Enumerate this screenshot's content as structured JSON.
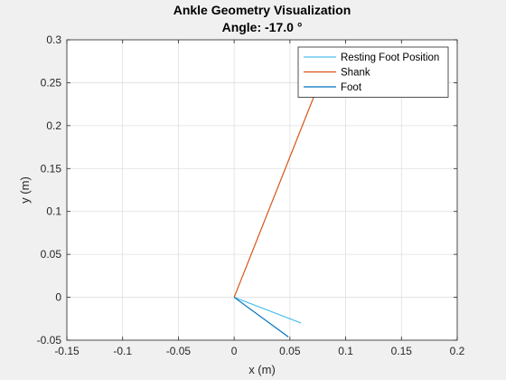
{
  "chart_data": {
    "type": "line",
    "title": "Ankle Geometry Visualization",
    "subtitle": "Angle: -17.0 °",
    "xlabel": "x (m)",
    "ylabel": "y (m)",
    "xlim": [
      -0.15,
      0.2
    ],
    "ylim": [
      -0.05,
      0.3
    ],
    "xticks": [
      -0.15,
      -0.1,
      -0.05,
      0,
      0.05,
      0.1,
      0.15,
      0.2
    ],
    "xtick_labels": [
      "-0.15",
      "-0.1",
      "-0.05",
      "0",
      "0.05",
      "0.1",
      "0.15",
      "0.2"
    ],
    "yticks": [
      -0.05,
      0,
      0.05,
      0.1,
      0.15,
      0.2,
      0.25,
      0.3
    ],
    "ytick_labels": [
      "-0.05",
      "0",
      "0.05",
      "0.1",
      "0.15",
      "0.2",
      "0.25",
      "0.3"
    ],
    "grid": true,
    "legend_position": "top-right",
    "series": [
      {
        "name": "Resting Foot Position",
        "color": "#4DBEEE",
        "x": [
          0,
          0.06
        ],
        "y": [
          0,
          -0.03
        ]
      },
      {
        "name": "Shank",
        "color": "#D95319",
        "x": [
          0,
          0.0877
        ],
        "y": [
          0,
          0.2868
        ]
      },
      {
        "name": "Foot",
        "color": "#0072BD",
        "x": [
          0,
          0.0486
        ],
        "y": [
          0,
          -0.0462
        ]
      }
    ]
  }
}
